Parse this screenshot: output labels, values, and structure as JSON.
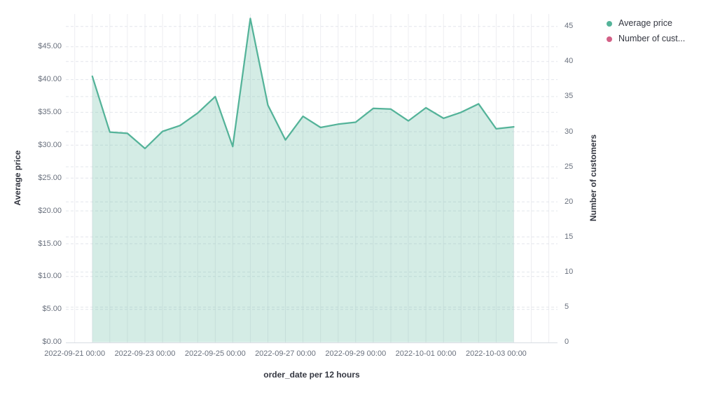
{
  "legend": {
    "items": [
      {
        "label": "Average price",
        "color": "#54b399"
      },
      {
        "label": "Number of cust...",
        "color": "#d36086"
      }
    ]
  },
  "chart_data": {
    "type": "area",
    "title": "",
    "xlabel": "order_date per 12 hours",
    "ylabel_left": "Average price",
    "ylabel_right": "Number of customers",
    "grid": true,
    "legend_position": "top-right",
    "x_axis": {
      "bucket_interval": "12 hours",
      "tick_labels": [
        "2022-09-21 00:00",
        "2022-09-23 00:00",
        "2022-09-25 00:00",
        "2022-09-27 00:00",
        "2022-09-29 00:00",
        "2022-10-01 00:00",
        "2022-10-03 00:00"
      ],
      "tick_indices": [
        0,
        4,
        8,
        12,
        16,
        20,
        24
      ]
    },
    "left_axis": {
      "tick_labels": [
        "$0.00",
        "$5.00",
        "$10.00",
        "$15.00",
        "$20.00",
        "$25.00",
        "$30.00",
        "$35.00",
        "$40.00",
        "$45.00"
      ],
      "tick_values": [
        0,
        5,
        10,
        15,
        20,
        25,
        30,
        35,
        40,
        45
      ],
      "range": [
        0,
        50
      ]
    },
    "right_axis": {
      "tick_labels": [
        "0",
        "5",
        "10",
        "15",
        "20",
        "25",
        "30",
        "35",
        "40",
        "45"
      ],
      "tick_values": [
        0,
        5,
        10,
        15,
        20,
        25,
        30,
        35,
        40,
        45
      ]
    },
    "series": [
      {
        "name": "Average price",
        "color": "#54b399",
        "axis": "left",
        "x": [
          "2022-09-21 12:00",
          "2022-09-22 00:00",
          "2022-09-22 12:00",
          "2022-09-23 00:00",
          "2022-09-23 12:00",
          "2022-09-24 00:00",
          "2022-09-24 12:00",
          "2022-09-25 00:00",
          "2022-09-25 12:00",
          "2022-09-26 00:00",
          "2022-09-26 12:00",
          "2022-09-27 00:00",
          "2022-09-27 12:00",
          "2022-09-28 00:00",
          "2022-09-28 12:00",
          "2022-09-29 00:00",
          "2022-09-29 12:00",
          "2022-09-30 00:00",
          "2022-09-30 12:00",
          "2022-10-01 00:00",
          "2022-10-01 12:00",
          "2022-10-02 00:00",
          "2022-10-02 12:00",
          "2022-10-03 00:00",
          "2022-10-03 12:00"
        ],
        "values": [
          40.5,
          32.0,
          31.8,
          29.5,
          32.1,
          33.0,
          34.9,
          37.4,
          29.8,
          49.3,
          36.1,
          30.8,
          34.4,
          32.7,
          33.2,
          33.5,
          35.6,
          35.5,
          33.7,
          35.7,
          34.1,
          35.0,
          36.3,
          32.5,
          32.8
        ]
      },
      {
        "name": "Number of customers",
        "color": "#d36086",
        "axis": "right",
        "x": [],
        "values": []
      }
    ]
  }
}
